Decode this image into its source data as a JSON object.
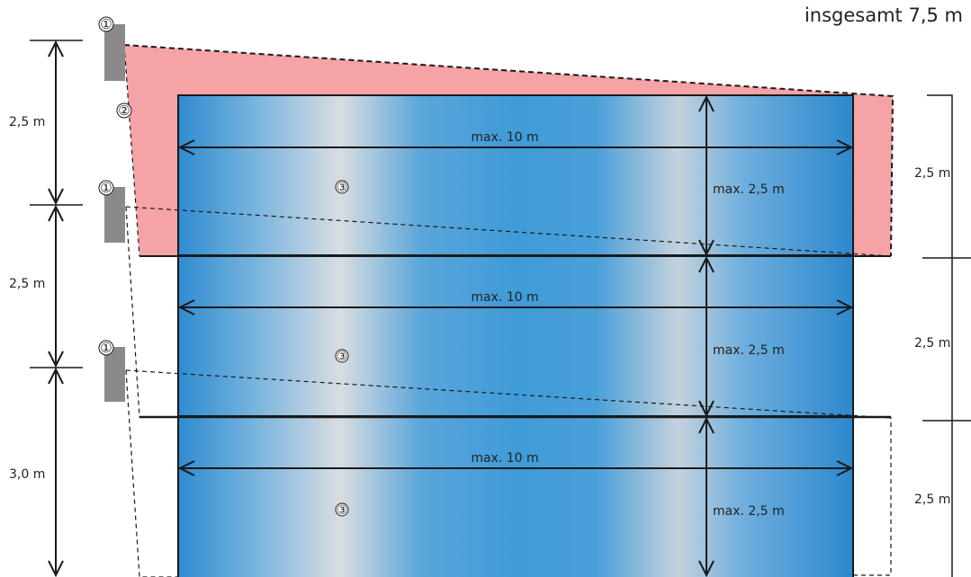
{
  "title": "insgesamt 7,5 m",
  "left_dimensions": [
    "2,5 m",
    "2,5 m",
    "3,0 m"
  ],
  "right_dimensions": [
    "2,5 m",
    "2,5 m",
    "2,5 m"
  ],
  "panels": [
    {
      "width_label": "max. 10 m",
      "height_label": "max. 2,5 m",
      "marker": "③"
    },
    {
      "width_label": "max. 10 m",
      "height_label": "max. 2,5 m",
      "marker": "③"
    },
    {
      "width_label": "max. 10 m",
      "height_label": "max. 2,5 m",
      "marker": "③"
    }
  ],
  "projector_markers": [
    "①",
    "①",
    "①"
  ],
  "zone_marker": "②",
  "colors": {
    "panel_blue": "#3f97d4",
    "panel_highlight": "#d8dde2",
    "projection_zone": "#f5a3a6",
    "projector": "#8a8a8a",
    "lines": "#1a1a1a"
  }
}
